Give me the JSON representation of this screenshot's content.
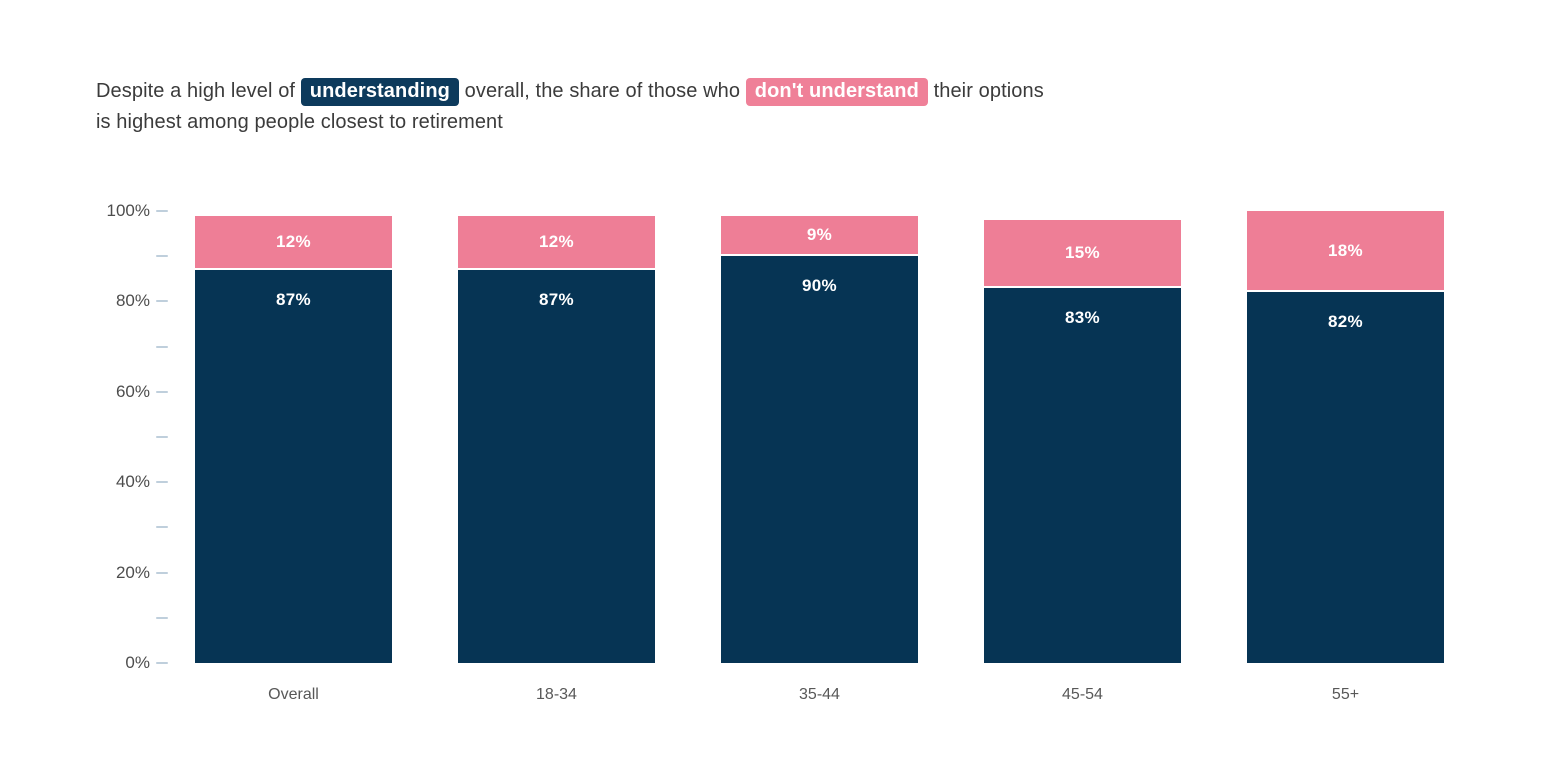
{
  "title": {
    "prefix": "Despite a high level of",
    "highlight_understand": "understanding",
    "middle": "overall, the share of those who",
    "highlight_dont": "don't understand",
    "suffix_line1_end": "their options",
    "line2": "is highest among people closest to retirement"
  },
  "colors": {
    "understand": "#063454",
    "dont_understand": "#ee7e96",
    "understand_chip": "#0d3a5c",
    "dont_understand_chip": "#ef8098",
    "tick": "#bfcfdc",
    "y_label_text": "#4d4d4d",
    "x_label_text": "#585858",
    "title_text": "#3b3b3b",
    "bar_value_text": "#ffffff"
  },
  "chart_data": {
    "type": "bar",
    "stacked": true,
    "title": "Despite a high level of understanding overall, the share of those who don't understand their options is highest among people closest to retirement",
    "categories": [
      "Overall",
      "18-34",
      "35-44",
      "45-54",
      "55+"
    ],
    "series": [
      {
        "name": "understand",
        "values": [
          87,
          87,
          90,
          83,
          82
        ]
      },
      {
        "name": "don't understand",
        "values": [
          12,
          12,
          9,
          15,
          18
        ]
      }
    ],
    "value_suffix": "%",
    "xlabel": "",
    "ylabel": "",
    "ylim": [
      0,
      100
    ],
    "y_major_step": 20,
    "y_minor_step": 10,
    "y_tick_labels": [
      "0%",
      "20%",
      "40%",
      "60%",
      "80%",
      "100%"
    ],
    "grid": false,
    "legend_position": "none"
  }
}
